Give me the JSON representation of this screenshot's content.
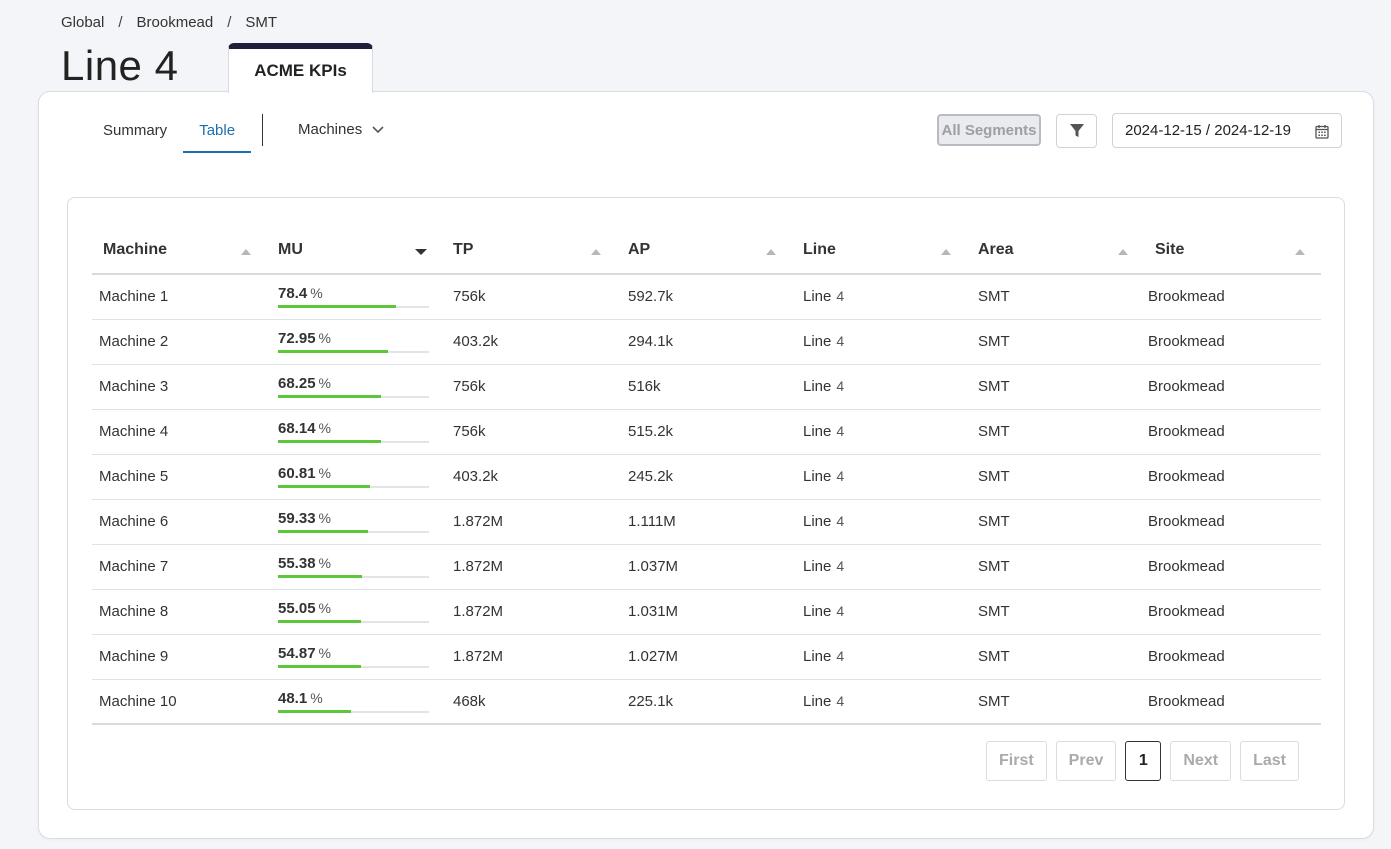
{
  "breadcrumb": [
    "Global",
    "Brookmead",
    "SMT"
  ],
  "page_title": "Line 4",
  "kpi_tab": "ACME KPIs",
  "view_tabs": [
    {
      "label": "Summary",
      "active": false
    },
    {
      "label": "Table",
      "active": true
    }
  ],
  "machines_dropdown": "Machines",
  "segments_button": "All Segments",
  "date_range": "2024-12-15 / 2024-12-19",
  "colors": {
    "accent": "#1a6fb0",
    "progress": "#5cc73b",
    "tab_top": "#1f1f3a"
  },
  "table": {
    "columns": [
      "Machine",
      "MU",
      "TP",
      "AP",
      "Line",
      "Area",
      "Site"
    ],
    "rows": [
      {
        "machine": "Machine 1",
        "mu": "78.4",
        "mu_pct": 78.4,
        "tp": "756k",
        "ap": "592.7k",
        "line": "Line",
        "line_num": "4",
        "area": "SMT",
        "site": "Brookmead"
      },
      {
        "machine": "Machine 2",
        "mu": "72.95",
        "mu_pct": 72.95,
        "tp": "403.2k",
        "ap": "294.1k",
        "line": "Line",
        "line_num": "4",
        "area": "SMT",
        "site": "Brookmead"
      },
      {
        "machine": "Machine 3",
        "mu": "68.25",
        "mu_pct": 68.25,
        "tp": "756k",
        "ap": "516k",
        "line": "Line",
        "line_num": "4",
        "area": "SMT",
        "site": "Brookmead"
      },
      {
        "machine": "Machine 4",
        "mu": "68.14",
        "mu_pct": 68.14,
        "tp": "756k",
        "ap": "515.2k",
        "line": "Line",
        "line_num": "4",
        "area": "SMT",
        "site": "Brookmead"
      },
      {
        "machine": "Machine 5",
        "mu": "60.81",
        "mu_pct": 60.81,
        "tp": "403.2k",
        "ap": "245.2k",
        "line": "Line",
        "line_num": "4",
        "area": "SMT",
        "site": "Brookmead"
      },
      {
        "machine": "Machine 6",
        "mu": "59.33",
        "mu_pct": 59.33,
        "tp": "1.872M",
        "ap": "1.111M",
        "line": "Line",
        "line_num": "4",
        "area": "SMT",
        "site": "Brookmead"
      },
      {
        "machine": "Machine 7",
        "mu": "55.38",
        "mu_pct": 55.38,
        "tp": "1.872M",
        "ap": "1.037M",
        "line": "Line",
        "line_num": "4",
        "area": "SMT",
        "site": "Brookmead"
      },
      {
        "machine": "Machine 8",
        "mu": "55.05",
        "mu_pct": 55.05,
        "tp": "1.872M",
        "ap": "1.031M",
        "line": "Line",
        "line_num": "4",
        "area": "SMT",
        "site": "Brookmead"
      },
      {
        "machine": "Machine 9",
        "mu": "54.87",
        "mu_pct": 54.87,
        "tp": "1.872M",
        "ap": "1.027M",
        "line": "Line",
        "line_num": "4",
        "area": "SMT",
        "site": "Brookmead"
      },
      {
        "machine": "Machine 10",
        "mu": "48.1",
        "mu_pct": 48.1,
        "tp": "468k",
        "ap": "225.1k",
        "line": "Line",
        "line_num": "4",
        "area": "SMT",
        "site": "Brookmead"
      }
    ],
    "mu_unit": "%"
  },
  "pagination": {
    "first": "First",
    "prev": "Prev",
    "current": "1",
    "next": "Next",
    "last": "Last"
  }
}
